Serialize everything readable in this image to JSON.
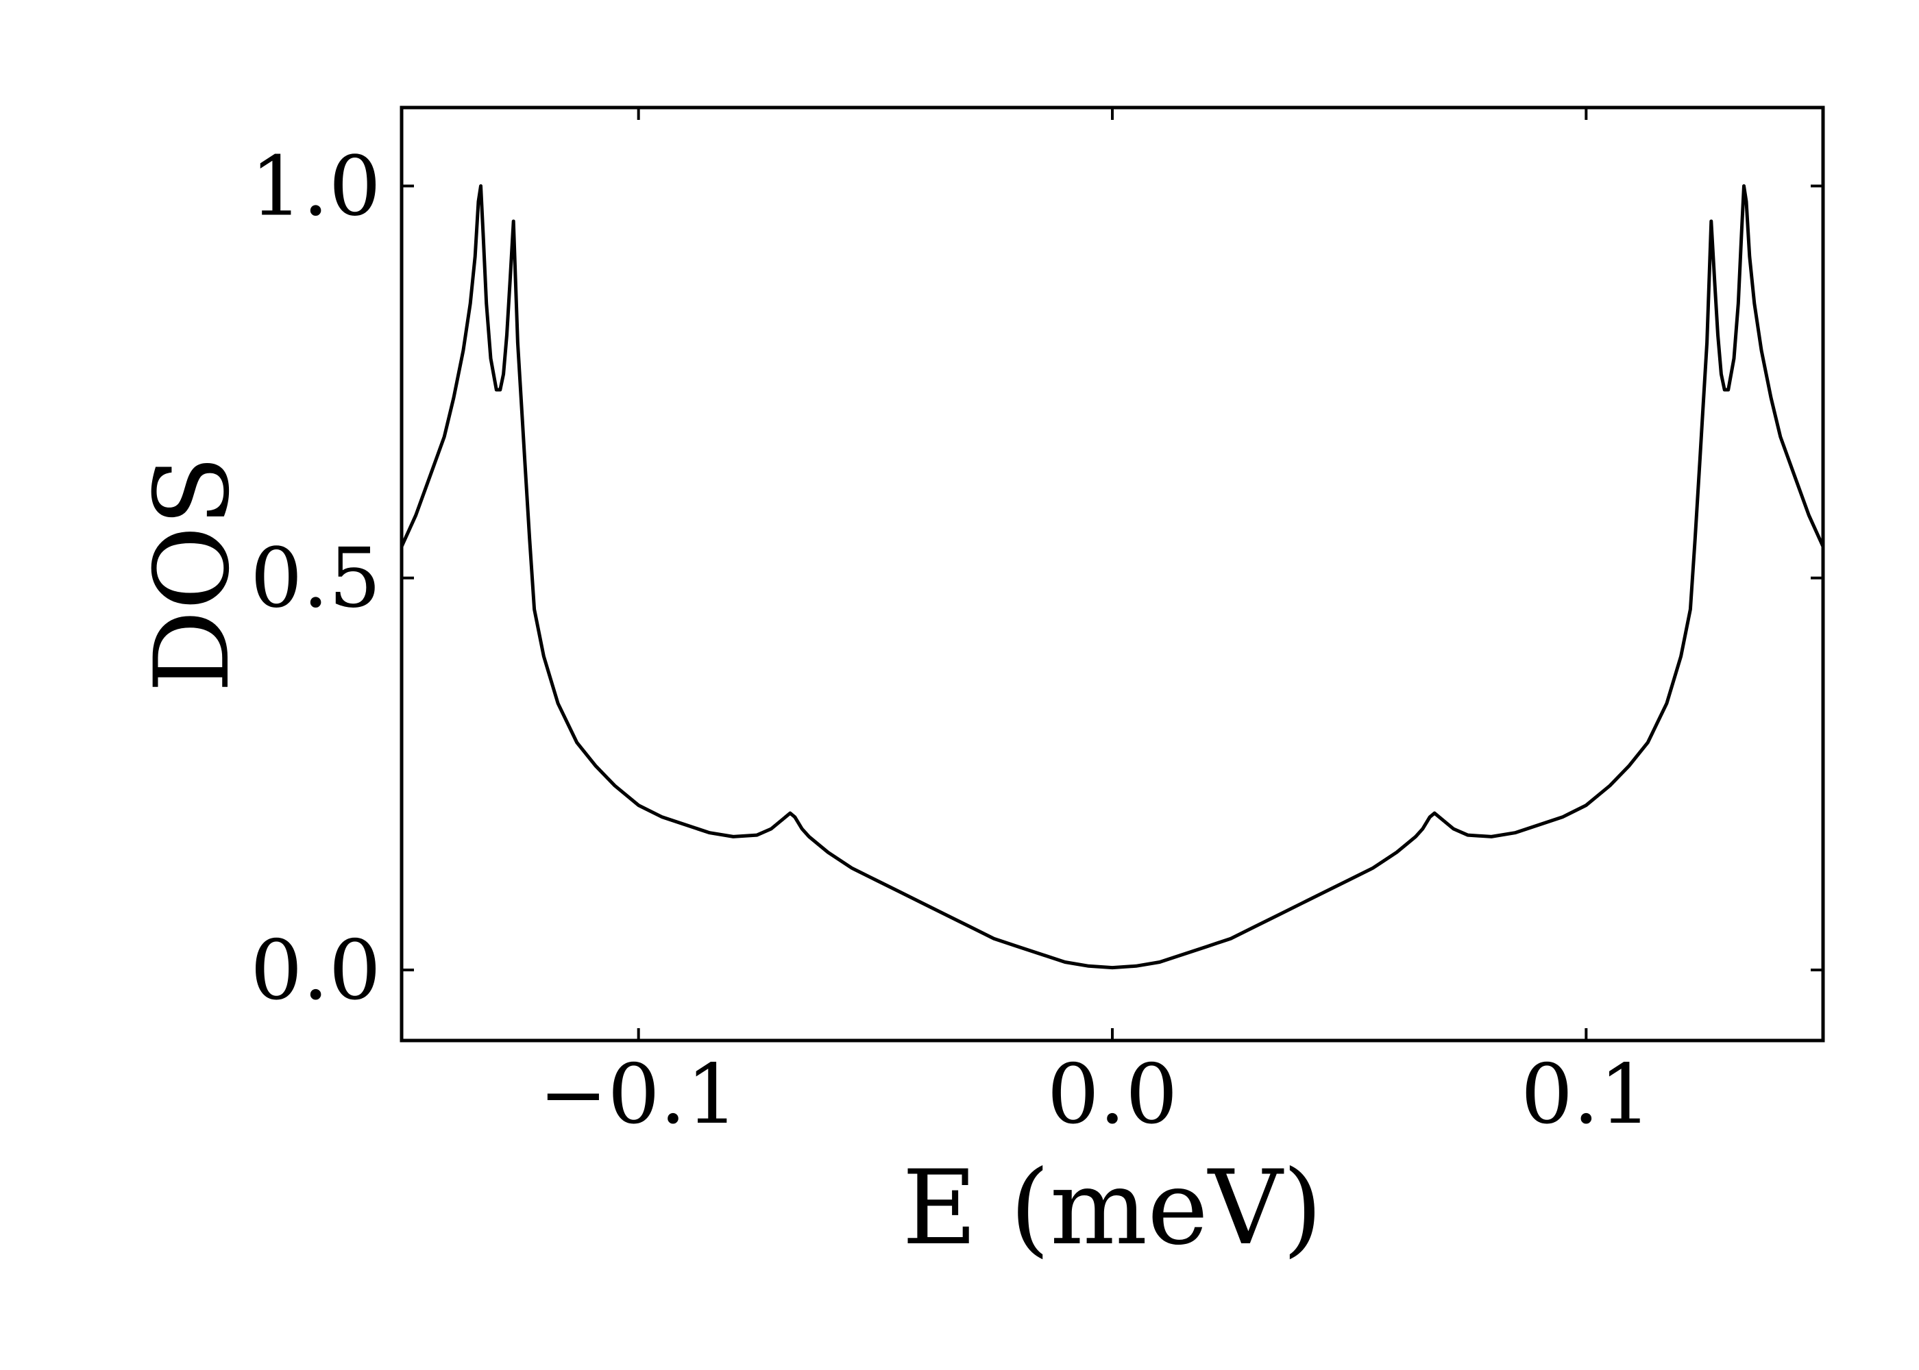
{
  "chart_data": {
    "type": "line",
    "title": "",
    "xlabel": "E (meV)",
    "ylabel": "DOS",
    "xlim": [
      -0.15,
      0.15
    ],
    "ylim": [
      -0.09,
      1.1
    ],
    "xticks": [
      {
        "value": -0.1,
        "label": "−0.1"
      },
      {
        "value": 0.0,
        "label": "0.0"
      },
      {
        "value": 0.1,
        "label": "0.1"
      }
    ],
    "yticks": [
      {
        "value": 0.0,
        "label": "0.0"
      },
      {
        "value": 0.5,
        "label": "0.5"
      },
      {
        "value": 1.0,
        "label": "1.0"
      }
    ],
    "grid": false,
    "legend": "none",
    "line_color": "#000000",
    "series": [
      {
        "x": [
          -0.15,
          -0.147,
          -0.144,
          -0.141,
          -0.139,
          -0.137,
          -0.1355,
          -0.1345,
          -0.1338,
          -0.1333,
          -0.1328,
          -0.1321,
          -0.1312,
          -0.13,
          -0.1292,
          -0.1285,
          -0.1278,
          -0.1271,
          -0.1264,
          -0.1255,
          -0.1245,
          -0.124,
          -0.1237,
          -0.123,
          -0.122,
          -0.12,
          -0.117,
          -0.113,
          -0.109,
          -0.105,
          -0.1,
          -0.095,
          -0.09,
          -0.085,
          -0.08,
          -0.075,
          -0.072,
          -0.07,
          -0.068,
          -0.067,
          -0.0655,
          -0.064,
          -0.062,
          -0.06,
          -0.055,
          -0.05,
          -0.045,
          -0.04,
          -0.035,
          -0.03,
          -0.025,
          -0.02,
          -0.015,
          -0.01,
          -0.005,
          0.0,
          0.005,
          0.01,
          0.015,
          0.02,
          0.025,
          0.03,
          0.035,
          0.04,
          0.045,
          0.05,
          0.055,
          0.06,
          0.062,
          0.064,
          0.0655,
          0.067,
          0.068,
          0.07,
          0.072,
          0.075,
          0.08,
          0.085,
          0.09,
          0.095,
          0.1,
          0.105,
          0.109,
          0.113,
          0.117,
          0.12,
          0.122,
          0.123,
          0.1237,
          0.124,
          0.1245,
          0.1255,
          0.1264,
          0.1271,
          0.1278,
          0.1285,
          0.1292,
          0.13,
          0.1312,
          0.1321,
          0.1328,
          0.1333,
          0.1338,
          0.1345,
          0.1355,
          0.137,
          0.139,
          0.141,
          0.144,
          0.147,
          0.15
        ],
        "y": [
          0.54,
          0.58,
          0.63,
          0.68,
          0.73,
          0.79,
          0.85,
          0.91,
          0.98,
          1.0,
          0.94,
          0.85,
          0.78,
          0.74,
          0.74,
          0.76,
          0.81,
          0.88,
          0.955,
          0.8,
          0.7,
          0.65,
          0.62,
          0.55,
          0.46,
          0.4,
          0.34,
          0.29,
          0.26,
          0.235,
          0.21,
          0.195,
          0.185,
          0.175,
          0.17,
          0.172,
          0.18,
          0.19,
          0.2,
          0.195,
          0.18,
          0.17,
          0.16,
          0.15,
          0.13,
          0.115,
          0.1,
          0.085,
          0.07,
          0.055,
          0.04,
          0.03,
          0.02,
          0.01,
          0.005,
          0.003,
          0.005,
          0.01,
          0.02,
          0.03,
          0.04,
          0.055,
          0.07,
          0.085,
          0.1,
          0.115,
          0.13,
          0.15,
          0.16,
          0.17,
          0.18,
          0.195,
          0.2,
          0.19,
          0.18,
          0.172,
          0.17,
          0.175,
          0.185,
          0.195,
          0.21,
          0.235,
          0.26,
          0.29,
          0.34,
          0.4,
          0.46,
          0.55,
          0.62,
          0.65,
          0.7,
          0.8,
          0.955,
          0.88,
          0.81,
          0.76,
          0.74,
          0.74,
          0.78,
          0.85,
          0.94,
          1.0,
          0.98,
          0.91,
          0.85,
          0.79,
          0.73,
          0.68,
          0.63,
          0.58,
          0.54
        ]
      }
    ]
  }
}
